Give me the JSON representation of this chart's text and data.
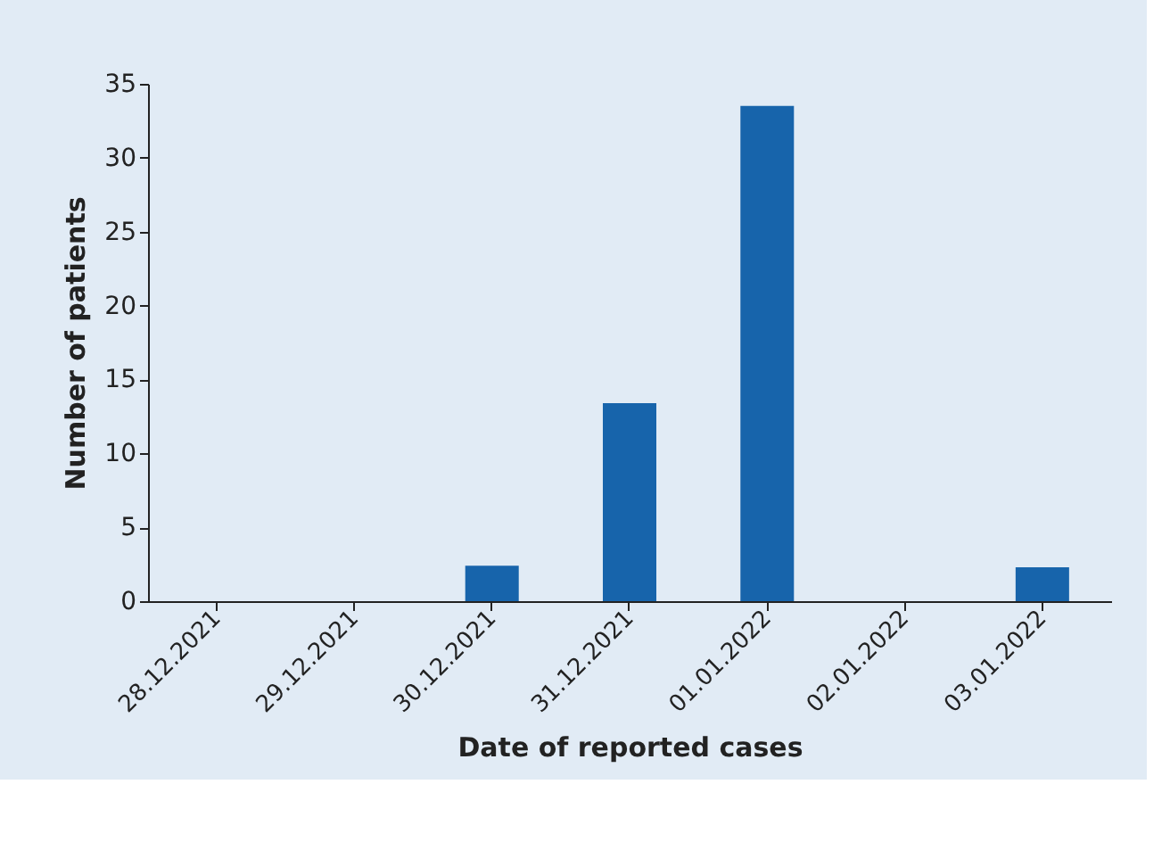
{
  "chart_data": {
    "type": "bar",
    "xlabel": "Date of reported cases",
    "ylabel": "Number of patients",
    "categories": [
      "28.12.2021",
      "29.12.2021",
      "30.12.2021",
      "31.12.2021",
      "01.01.2022",
      "02.01.2022",
      "03.01.2022"
    ],
    "values": [
      0,
      0,
      2.4,
      13.4,
      33.5,
      0,
      2.3
    ],
    "color": "#1764ab",
    "ylim": [
      0,
      35
    ],
    "yticks": [
      0,
      5,
      10,
      15,
      20,
      25,
      30,
      35
    ],
    "grid": false
  }
}
